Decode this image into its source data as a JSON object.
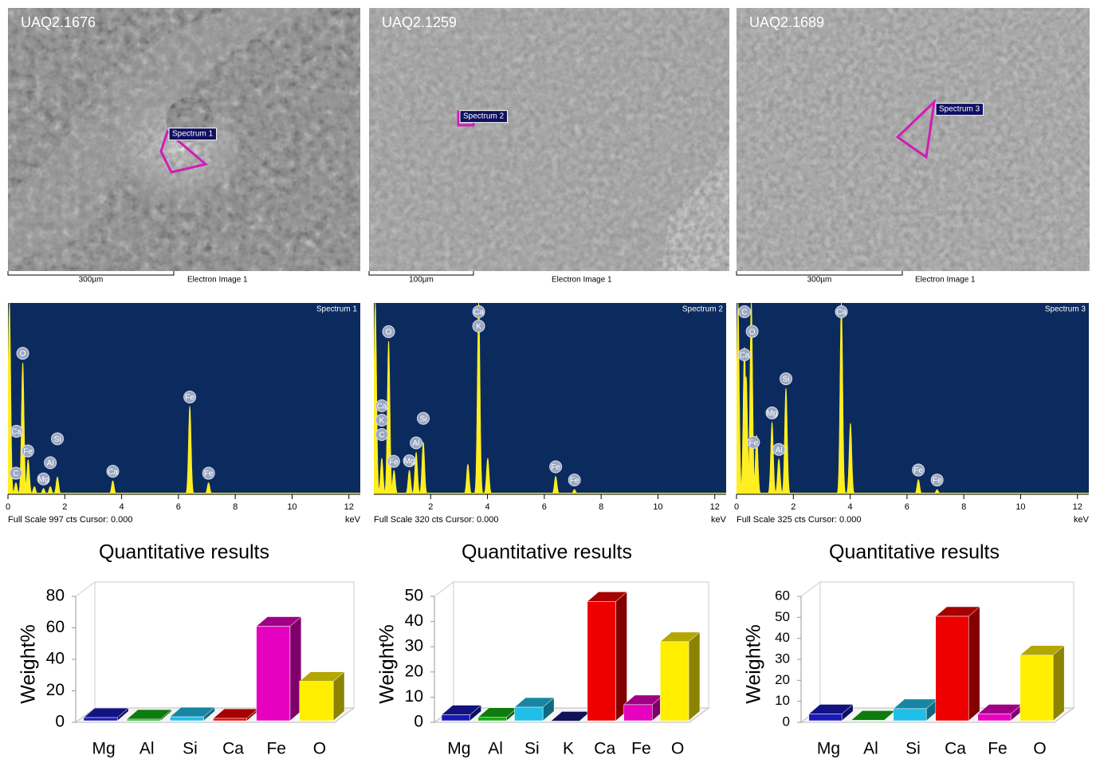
{
  "images": [
    {
      "label": "UAQ2.1676",
      "scale_bar": "300µm",
      "caption": "Electron Image 1",
      "tag": "Spectrum 1"
    },
    {
      "label": "UAQ2.1259",
      "scale_bar": "100µm",
      "caption": "Electron Image 1",
      "tag": "Spectrum 2"
    },
    {
      "label": "UAQ2.1689",
      "scale_bar": "300µm",
      "caption": "Electron Image 1",
      "tag": "Spectrum 3"
    }
  ],
  "spectra": [
    {
      "title": "Spectrum 1",
      "footer_prefix": "Full Scale",
      "full_scale": 997,
      "footer_suffix": "cts Cursor: 0.000",
      "unit": "keV",
      "xlim": [
        0,
        12.4
      ],
      "xticks": [
        0,
        2,
        4,
        6,
        8,
        10,
        12
      ],
      "peaks": [
        {
          "x": 0.05,
          "cts": 997
        },
        {
          "x": 0.28,
          "cts": 60
        },
        {
          "x": 0.52,
          "cts": 685
        },
        {
          "x": 0.71,
          "cts": 180
        },
        {
          "x": 0.93,
          "cts": 40
        },
        {
          "x": 1.25,
          "cts": 30
        },
        {
          "x": 1.49,
          "cts": 40
        },
        {
          "x": 1.74,
          "cts": 90
        },
        {
          "x": 3.69,
          "cts": 70
        },
        {
          "x": 6.4,
          "cts": 457
        },
        {
          "x": 7.06,
          "cts": 60
        }
      ],
      "labels": [
        {
          "text": "O",
          "x": 0.52
        },
        {
          "text": "Fe",
          "x": 0.7
        },
        {
          "text": "C",
          "x": 0.28
        },
        {
          "text": "Ca",
          "x": 0.3
        },
        {
          "text": "Mg",
          "x": 1.25
        },
        {
          "text": "Al",
          "x": 1.49
        },
        {
          "text": "Si",
          "x": 1.74
        },
        {
          "text": "Ca",
          "x": 3.69
        },
        {
          "text": "Fe",
          "x": 6.4
        },
        {
          "text": "Fe",
          "x": 7.06
        }
      ]
    },
    {
      "title": "Spectrum 2",
      "footer_prefix": "Full Scale",
      "full_scale": 320,
      "footer_suffix": "cts Cursor: 0.000",
      "unit": "keV",
      "xlim": [
        0,
        12.4
      ],
      "xticks": [
        2,
        4,
        6,
        8,
        10,
        12
      ],
      "peaks": [
        {
          "x": 0.05,
          "cts": 320
        },
        {
          "x": 0.28,
          "cts": 60
        },
        {
          "x": 0.52,
          "cts": 256
        },
        {
          "x": 0.71,
          "cts": 40
        },
        {
          "x": 1.25,
          "cts": 40
        },
        {
          "x": 1.49,
          "cts": 70
        },
        {
          "x": 1.74,
          "cts": 87
        },
        {
          "x": 3.31,
          "cts": 50
        },
        {
          "x": 3.69,
          "cts": 320
        },
        {
          "x": 4.01,
          "cts": 60
        },
        {
          "x": 6.4,
          "cts": 30
        },
        {
          "x": 7.06,
          "cts": 8
        }
      ],
      "labels": [
        {
          "text": "O",
          "x": 0.52
        },
        {
          "text": "Fe",
          "x": 0.7
        },
        {
          "text": "C",
          "x": 0.28
        },
        {
          "text": "K",
          "x": 0.28
        },
        {
          "text": "Ca",
          "x": 0.28
        },
        {
          "text": "Mg",
          "x": 1.25
        },
        {
          "text": "Al",
          "x": 1.49
        },
        {
          "text": "Si",
          "x": 1.74
        },
        {
          "text": "Ca",
          "x": 3.69
        },
        {
          "text": "K",
          "x": 3.69
        },
        {
          "text": "Fe",
          "x": 6.4
        },
        {
          "text": "Fe",
          "x": 7.06
        }
      ]
    },
    {
      "title": "Spectrum 3",
      "footer_prefix": "Full Scale",
      "full_scale": 325,
      "footer_suffix": "cts Cursor: 0.000",
      "unit": "keV",
      "xlim": [
        0,
        12.4
      ],
      "xticks": [
        0,
        2,
        4,
        6,
        8,
        10,
        12
      ],
      "peaks": [
        {
          "x": 0.05,
          "cts": 325
        },
        {
          "x": 0.28,
          "cts": 250
        },
        {
          "x": 0.34,
          "cts": 200
        },
        {
          "x": 0.52,
          "cts": 325
        },
        {
          "x": 0.71,
          "cts": 100
        },
        {
          "x": 1.25,
          "cts": 122
        },
        {
          "x": 1.49,
          "cts": 60
        },
        {
          "x": 1.74,
          "cts": 180
        },
        {
          "x": 3.69,
          "cts": 325
        },
        {
          "x": 4.01,
          "cts": 120
        },
        {
          "x": 6.4,
          "cts": 25
        },
        {
          "x": 7.06,
          "cts": 8
        }
      ],
      "labels": [
        {
          "text": "Fe",
          "x": 0.6
        },
        {
          "text": "O",
          "x": 0.55
        },
        {
          "text": "C",
          "x": 0.28
        },
        {
          "text": "Ca",
          "x": 0.28
        },
        {
          "text": "Mg",
          "x": 1.25
        },
        {
          "text": "Al",
          "x": 1.49
        },
        {
          "text": "Si",
          "x": 1.74
        },
        {
          "text": "Ca",
          "x": 3.69
        },
        {
          "text": "Fe",
          "x": 6.4
        },
        {
          "text": "Fe",
          "x": 7.06
        }
      ]
    }
  ],
  "chart_data": [
    {
      "type": "bar3d",
      "title": "Quantitative results",
      "y_label": "Weight%",
      "categories": [
        "Mg",
        "Al",
        "Si",
        "Ca",
        "Fe",
        "O"
      ],
      "values": [
        3,
        2,
        3.5,
        2.5,
        61,
        26
      ],
      "colors": [
        "#1a1ab8",
        "#12b012",
        "#1fbfe8",
        "#ee0000",
        "#e600c0",
        "#ffee00"
      ],
      "ylim": [
        0,
        80
      ],
      "yticks": [
        0,
        20,
        40,
        60,
        80
      ]
    },
    {
      "type": "bar3d",
      "title": "Quantitative results",
      "y_label": "Weight%",
      "categories": [
        "Mg",
        "Al",
        "Si",
        "K",
        "Ca",
        "Fe",
        "O"
      ],
      "values": [
        3,
        2,
        6,
        0.5,
        48,
        7,
        32
      ],
      "colors": [
        "#1a1ab8",
        "#12b012",
        "#1fbfe8",
        "#1a1a80",
        "#ee0000",
        "#e600c0",
        "#ffee00"
      ],
      "ylim": [
        0,
        50
      ],
      "yticks": [
        0,
        10,
        20,
        30,
        40,
        50
      ]
    },
    {
      "type": "bar3d",
      "title": "Quantitative results",
      "y_label": "Weight%",
      "categories": [
        "Mg",
        "Al",
        "Si",
        "Ca",
        "Fe",
        "O"
      ],
      "values": [
        4,
        1,
        6.5,
        50.5,
        4,
        32
      ],
      "colors": [
        "#1a1ab8",
        "#12b012",
        "#1fbfe8",
        "#ee0000",
        "#e600c0",
        "#ffee00"
      ],
      "ylim": [
        0,
        60
      ],
      "yticks": [
        0,
        10,
        20,
        30,
        40,
        50,
        60
      ]
    }
  ]
}
